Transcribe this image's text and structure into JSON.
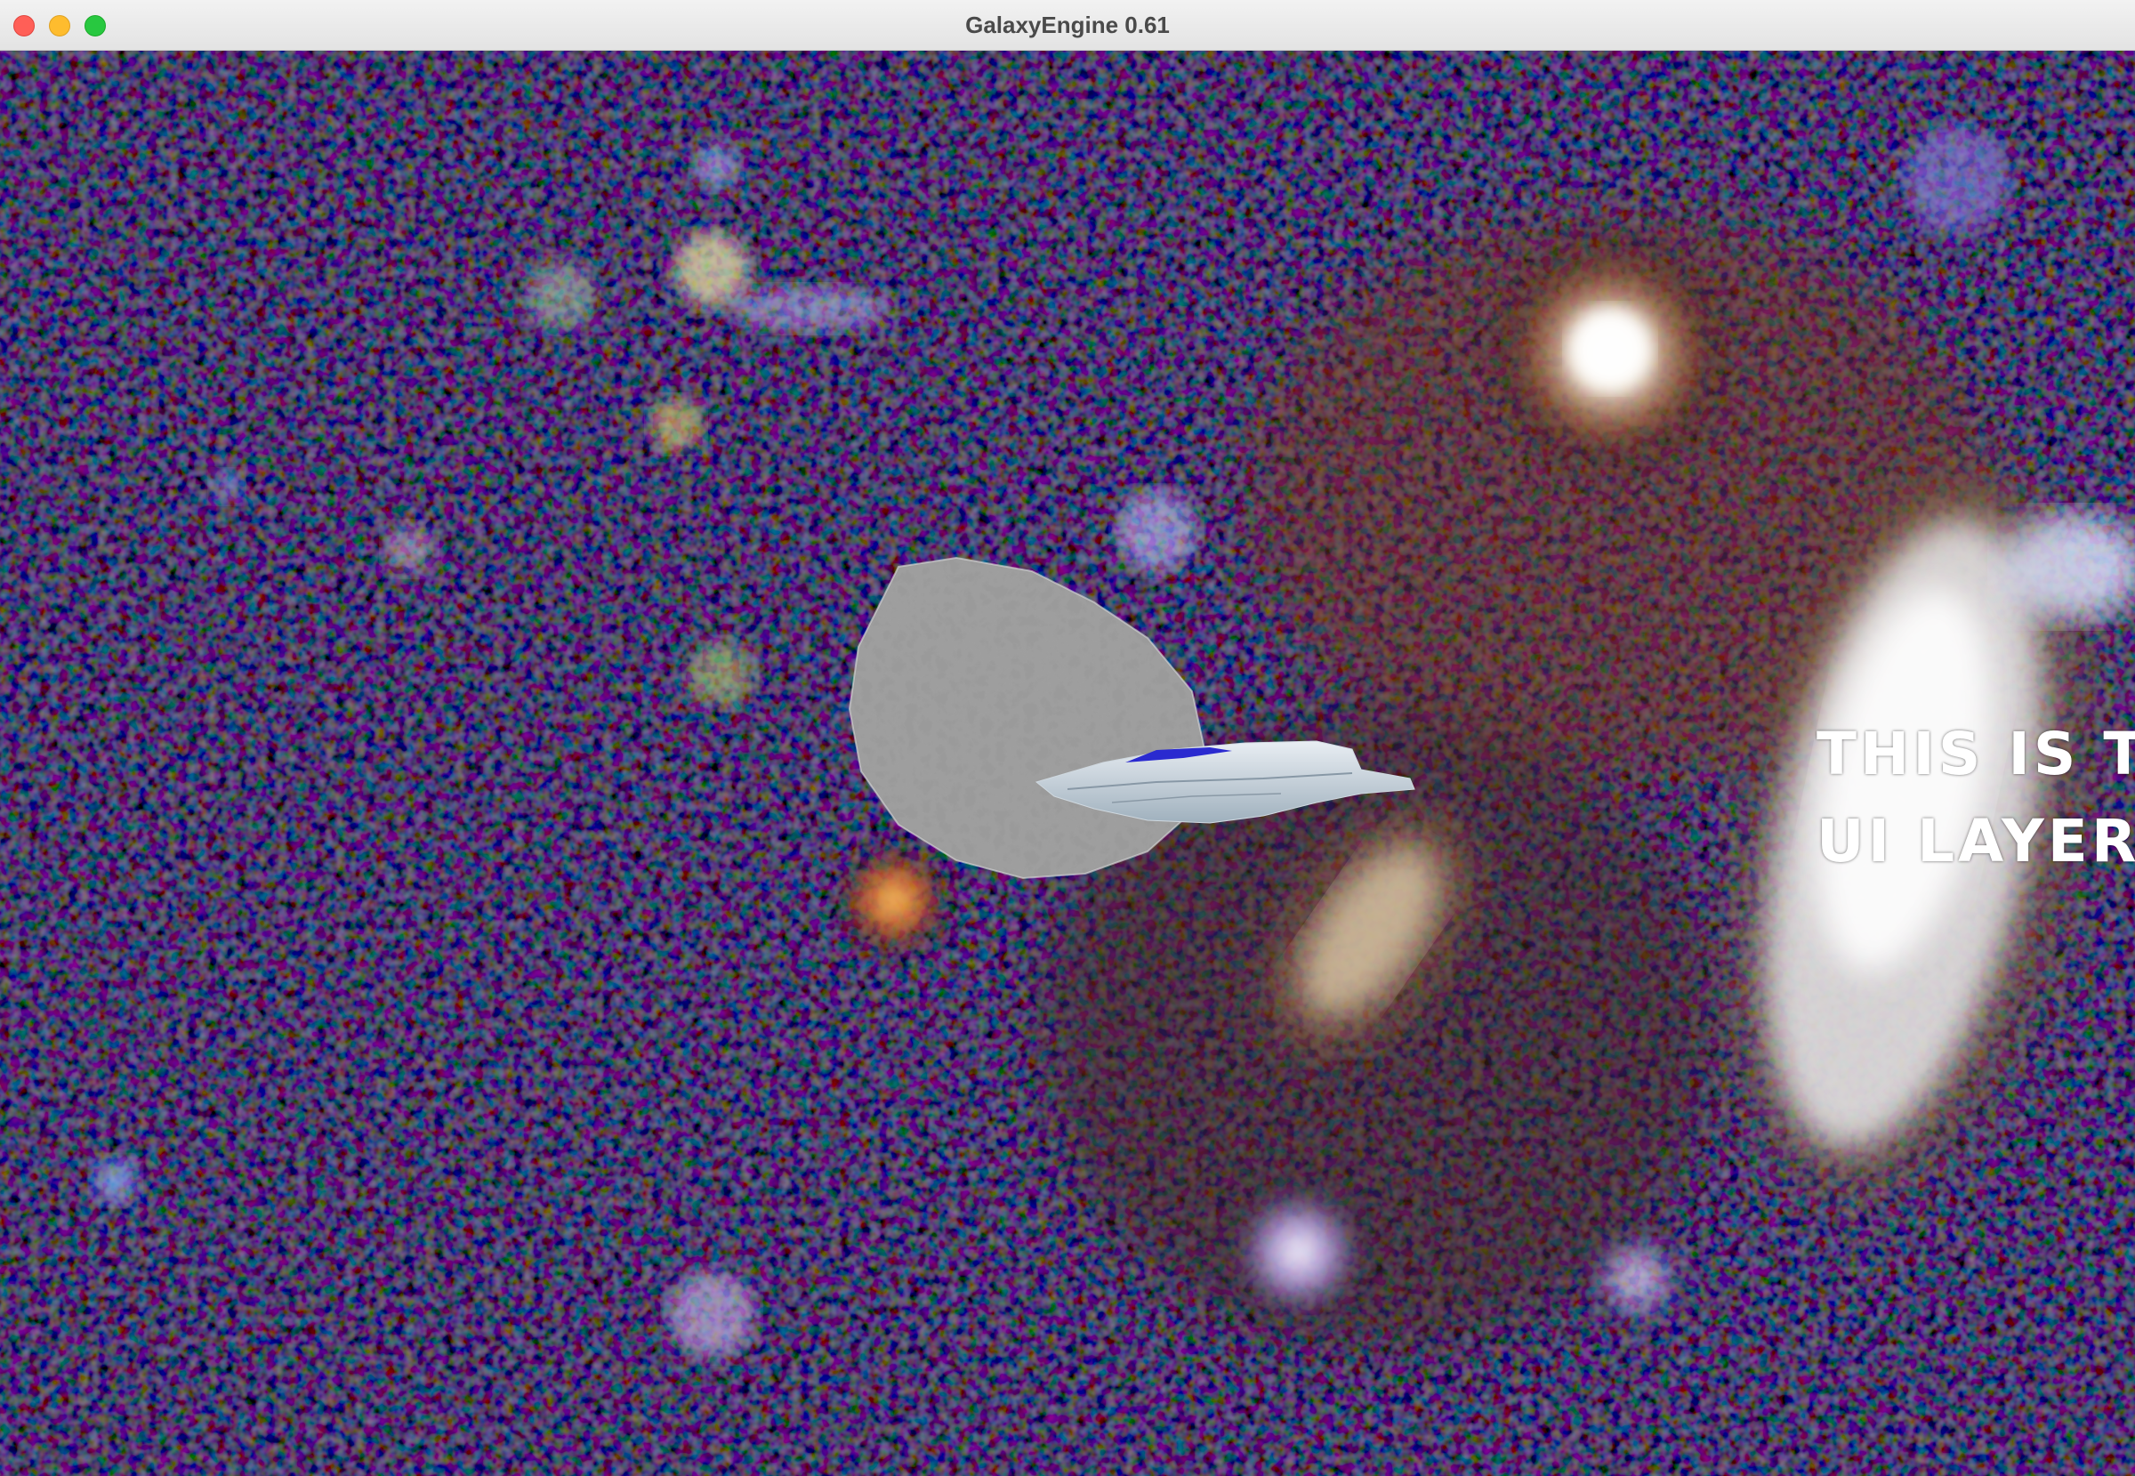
{
  "window": {
    "title": "GalaxyEngine 0.61"
  },
  "overlay": {
    "line1": "THIS IS TH",
    "line2": "UI LAYER",
    "color": "#ffffff"
  },
  "scene": {
    "background": "deep-space-galaxy-field",
    "objects": [
      "asteroid",
      "spaceship"
    ],
    "ship_accent_color": "#2a2ad0"
  }
}
